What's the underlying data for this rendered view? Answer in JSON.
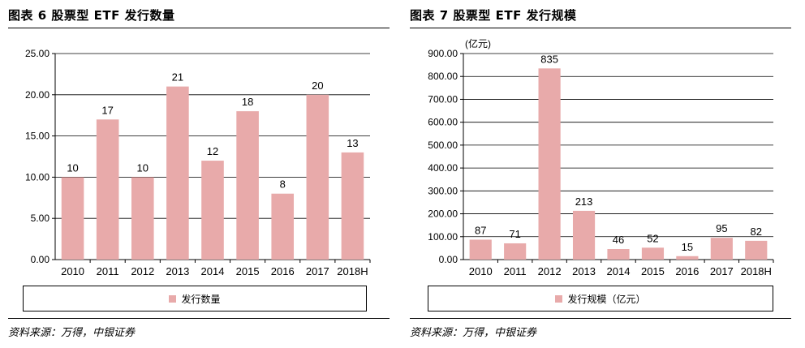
{
  "colors": {
    "bar": "#e8aaaa",
    "axis": "#000000",
    "grid": "#000000"
  },
  "panels": [
    {
      "title": "图表 6 股票型 ETF 发行数量",
      "legend": "发行数量",
      "source": "资料来源：万得，中银证券",
      "chart_data": {
        "type": "bar",
        "title": "图表 6 股票型 ETF 发行数量",
        "unit": "",
        "categories": [
          "2010",
          "2011",
          "2012",
          "2013",
          "2014",
          "2015",
          "2016",
          "2017",
          "2018H"
        ],
        "values": [
          10,
          17,
          10,
          21,
          12,
          18,
          8,
          20,
          13
        ],
        "value_labels": [
          "10",
          "17",
          "10",
          "21",
          "12",
          "18",
          "8",
          "20",
          "13"
        ],
        "yticks": [
          "0.00",
          "5.00",
          "10.00",
          "15.00",
          "20.00",
          "25.00"
        ],
        "ylim": [
          0,
          25
        ],
        "grid": true,
        "legend_position": "bottom",
        "series": [
          {
            "name": "发行数量",
            "values": [
              10,
              17,
              10,
              21,
              12,
              18,
              8,
              20,
              13
            ]
          }
        ]
      }
    },
    {
      "title": "图表 7 股票型 ETF 发行规模",
      "legend": "发行规模（亿元）",
      "source": "资料来源：万得，中银证券",
      "chart_data": {
        "type": "bar",
        "title": "图表 7 股票型 ETF 发行规模",
        "unit": "(亿元)",
        "categories": [
          "2010",
          "2011",
          "2012",
          "2013",
          "2014",
          "2015",
          "2016",
          "2017",
          "2018H"
        ],
        "values": [
          87,
          71,
          835,
          213,
          46,
          52,
          15,
          95,
          82
        ],
        "value_labels": [
          "87",
          "71",
          "835",
          "213",
          "46",
          "52",
          "15",
          "95",
          "82"
        ],
        "yticks": [
          "0.00",
          "100.00",
          "200.00",
          "300.00",
          "400.00",
          "500.00",
          "600.00",
          "700.00",
          "800.00",
          "900.00"
        ],
        "ylim": [
          0,
          900
        ],
        "grid": true,
        "legend_position": "bottom",
        "series": [
          {
            "name": "发行规模（亿元）",
            "values": [
              87,
              71,
              835,
              213,
              46,
              52,
              15,
              95,
              82
            ]
          }
        ]
      }
    }
  ]
}
